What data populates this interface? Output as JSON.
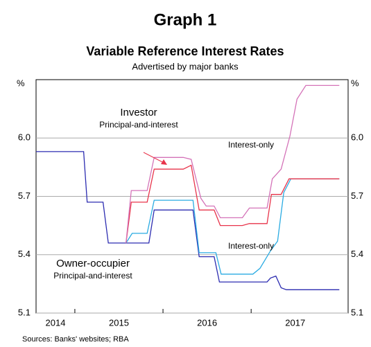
{
  "chart_data": {
    "type": "line",
    "title": "Graph 1",
    "subtitle": "Variable Reference Interest Rates",
    "note": "Advertised by major banks",
    "y_unit": "%",
    "source": "Sources:   Banks' websites; RBA",
    "xlim": [
      2014.56,
      2018.1
    ],
    "ylim": [
      5.1,
      6.3
    ],
    "yticks": [
      {
        "value": 5.1,
        "label": "5.1"
      },
      5.4,
      5.7,
      {
        "value": 6.0,
        "label": "6.0"
      }
    ],
    "xticks": [
      2015,
      2016,
      2017
    ],
    "xlabels": [
      {
        "value": 2014.78,
        "label": "2014"
      },
      {
        "value": 2015.5,
        "label": "2015"
      },
      {
        "value": 2016.5,
        "label": "2016"
      },
      {
        "value": 2017.5,
        "label": "2017"
      }
    ],
    "grid": true,
    "series": [
      {
        "color": "#2b2bb0",
        "x": [
          2014.56,
          2015.1,
          2015.14,
          2015.32,
          2015.38,
          2015.84,
          2015.9,
          2016.34,
          2016.41,
          2016.58,
          2016.64,
          2017.18,
          2017.22,
          2017.28,
          2017.34,
          2017.4,
          2018.0
        ],
        "values": [
          5.93,
          5.93,
          5.67,
          5.67,
          5.46,
          5.46,
          5.63,
          5.63,
          5.39,
          5.39,
          5.26,
          5.26,
          5.28,
          5.29,
          5.23,
          5.22,
          5.22
        ]
      },
      {
        "color": "#29abe2",
        "x": [
          2015.58,
          2015.65,
          2015.82,
          2015.9,
          2016.34,
          2016.41,
          2016.6,
          2016.66,
          2017.02,
          2017.1,
          2017.22,
          2017.3,
          2017.37,
          2017.45,
          2018.0
        ],
        "values": [
          5.46,
          5.51,
          5.51,
          5.68,
          5.68,
          5.41,
          5.41,
          5.3,
          5.3,
          5.33,
          5.42,
          5.47,
          5.72,
          5.79,
          5.79
        ]
      },
      {
        "color": "#e8334a",
        "x": [
          2015.58,
          2015.64,
          2015.82,
          2015.9,
          2016.23,
          2016.32,
          2016.41,
          2016.58,
          2016.65,
          2016.9,
          2016.98,
          2017.18,
          2017.23,
          2017.34,
          2017.43,
          2018.0
        ],
        "values": [
          5.46,
          5.67,
          5.67,
          5.84,
          5.84,
          5.86,
          5.63,
          5.63,
          5.55,
          5.55,
          5.56,
          5.56,
          5.71,
          5.71,
          5.79,
          5.79
        ]
      },
      {
        "color": "#d472b8",
        "x": [
          2015.58,
          2015.64,
          2015.82,
          2015.9,
          2016.23,
          2016.32,
          2016.43,
          2016.49,
          2016.58,
          2016.65,
          2016.9,
          2016.98,
          2017.18,
          2017.24,
          2017.34,
          2017.44,
          2017.52,
          2017.62,
          2018.0
        ],
        "values": [
          5.46,
          5.73,
          5.73,
          5.9,
          5.9,
          5.89,
          5.69,
          5.65,
          5.65,
          5.59,
          5.59,
          5.64,
          5.64,
          5.79,
          5.84,
          6.01,
          6.2,
          6.27,
          6.27
        ]
      }
    ],
    "annotations": [
      {
        "text": "Investor",
        "color": "#e8334a"
      },
      {
        "text": "Principal-and-interest",
        "color": "#e8334a"
      },
      {
        "text": "Interest-only",
        "color": "#d472b8"
      },
      {
        "text": "Interest-only",
        "color": "#29abe2"
      },
      {
        "text": "Owner-occupier",
        "color": "#2b2bb0"
      },
      {
        "text": "Principal-and-interest",
        "color": "#2b2bb0"
      }
    ]
  }
}
